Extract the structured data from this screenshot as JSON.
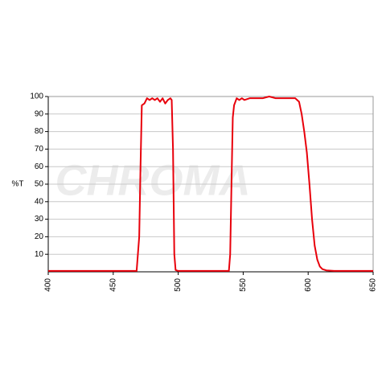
{
  "chart_data": {
    "type": "line",
    "y_label": "%T",
    "watermark": "CHROMA",
    "x": [
      400,
      468,
      470,
      471,
      472,
      474,
      476,
      478,
      480,
      482,
      484,
      486,
      488,
      490,
      492,
      494,
      495,
      496,
      497,
      498,
      500,
      539,
      540,
      541,
      542,
      543,
      545,
      547,
      549,
      551,
      555,
      560,
      565,
      570,
      575,
      580,
      585,
      590,
      593,
      595,
      597,
      599,
      601,
      603,
      605,
      607,
      609,
      611,
      614,
      620,
      650
    ],
    "series": [
      {
        "color": "#e8000b",
        "values": [
          0.5,
          0.5,
          20,
          60,
          95,
          96,
          99,
          98,
          99,
          98,
          99,
          97,
          99,
          96,
          98,
          99,
          98,
          70,
          10,
          1,
          0.5,
          0.5,
          10,
          50,
          88,
          95,
          99,
          98,
          99,
          98,
          99,
          99,
          99,
          100,
          99,
          99,
          99,
          99,
          97,
          90,
          80,
          68,
          50,
          30,
          15,
          7,
          3,
          1.5,
          0.8,
          0.5,
          0.5
        ]
      }
    ],
    "xlim": [
      400,
      650
    ],
    "xticks": [
      400,
      450,
      500,
      550,
      600,
      650
    ],
    "ylim": [
      0,
      100
    ],
    "yticks": [
      10,
      20,
      30,
      40,
      50,
      60,
      70,
      80,
      90,
      100
    ],
    "grid": true
  }
}
